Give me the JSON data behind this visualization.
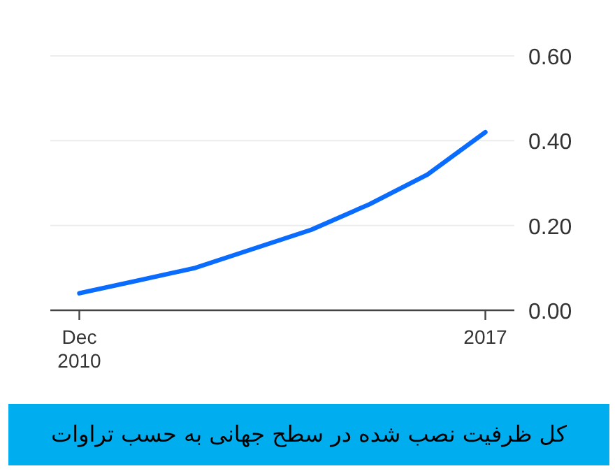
{
  "chart_data": {
    "type": "line",
    "title": "کل ظرفیت نصب شده در سطح جهانی به حسب تراوات",
    "x": [
      "2010-12",
      "2011-12",
      "2012-12",
      "2013-12",
      "2014-12",
      "2015-12",
      "2016-12",
      "2017-12"
    ],
    "series": [
      {
        "color": "#0a6cff",
        "values": [
          0.04,
          0.07,
          0.1,
          0.145,
          0.19,
          0.25,
          0.32,
          0.42
        ]
      }
    ],
    "xlim": [
      "2010-06",
      "2018-06"
    ],
    "xticks": [
      {
        "value": "2010-12",
        "label": "Dec 2010"
      },
      {
        "value": "2017-12",
        "label": "2017"
      }
    ],
    "ylim": [
      0,
      0.6
    ],
    "yticks": [
      {
        "value": 0,
        "label": "0.00"
      },
      {
        "value": 0.2,
        "label": "0.20"
      },
      {
        "value": 0.4,
        "label": "0.40"
      },
      {
        "value": 0.6,
        "label": "0.60"
      }
    ],
    "grid": "y",
    "marker": "none",
    "line_style": "solid"
  }
}
